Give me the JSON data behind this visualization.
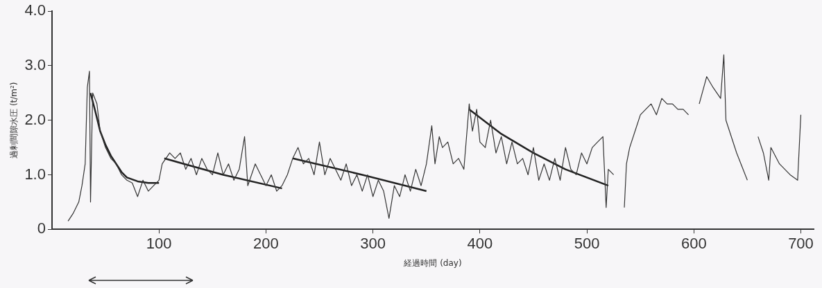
{
  "chart_data": {
    "type": "line",
    "xlabel": "経過時間 (day)",
    "ylabel": "過剰間隙水圧 (t/m²)",
    "xlim": [
      0,
      712
    ],
    "ylim": [
      0,
      4
    ],
    "xticks": [
      100,
      200,
      300,
      400,
      500,
      600,
      700
    ],
    "yticks": [
      0,
      {
        "value": 1,
        "label": "1.0"
      },
      {
        "value": 2,
        "label": "2.0"
      },
      {
        "value": 3,
        "label": "3.0"
      },
      {
        "value": 4,
        "label": "4.0"
      }
    ],
    "marker": "none",
    "line_style": "solid",
    "series": [
      {
        "color": "#333333",
        "x": [
          15,
          20,
          25,
          28,
          31,
          33,
          35,
          36,
          38,
          42,
          45,
          50,
          55,
          60,
          65,
          70,
          75,
          80,
          85,
          90,
          95,
          100,
          103,
          110,
          115,
          120,
          125,
          130,
          135,
          140,
          145,
          150,
          155,
          160,
          165,
          170,
          175,
          180,
          183,
          190,
          195,
          200,
          205,
          210,
          215,
          220,
          225,
          230,
          235,
          240,
          245,
          250,
          255,
          260,
          265,
          270,
          275,
          280,
          285,
          290,
          295,
          300,
          305,
          310,
          315,
          320,
          325,
          330,
          335,
          340,
          345,
          350,
          355,
          358,
          362,
          365,
          370,
          375,
          380,
          385,
          390,
          393,
          397,
          400,
          405,
          410,
          415,
          420,
          425,
          430,
          435,
          440,
          445,
          450,
          455,
          460,
          465,
          470,
          475,
          480,
          485,
          490,
          495,
          500,
          505,
          510,
          515,
          518,
          520,
          525,
          530,
          535,
          537,
          540,
          545,
          550,
          555,
          560,
          565,
          570,
          575,
          580,
          585,
          590,
          595,
          600,
          605,
          612,
          618,
          625,
          628,
          630,
          640,
          650,
          655,
          660,
          665,
          670,
          672,
          680,
          690,
          697,
          700
        ],
        "values": [
          0.15,
          0.3,
          0.5,
          0.8,
          1.2,
          2.6,
          2.9,
          0.5,
          2.5,
          2.3,
          1.8,
          1.5,
          1.3,
          1.2,
          1.0,
          0.9,
          0.85,
          0.6,
          0.9,
          0.7,
          0.8,
          0.9,
          1.2,
          1.4,
          1.3,
          1.4,
          1.1,
          1.3,
          1.0,
          1.3,
          1.1,
          1.0,
          1.4,
          1.0,
          1.2,
          0.9,
          1.1,
          1.7,
          0.8,
          1.2,
          1.0,
          0.8,
          1.0,
          0.7,
          0.8,
          1.0,
          1.3,
          1.5,
          1.2,
          1.3,
          1.0,
          1.6,
          1.0,
          1.3,
          1.1,
          0.9,
          1.2,
          0.8,
          1.0,
          0.7,
          1.0,
          0.6,
          0.9,
          0.7,
          0.2,
          0.8,
          0.6,
          1.0,
          0.7,
          1.1,
          0.8,
          1.2,
          1.9,
          1.2,
          1.7,
          1.5,
          1.6,
          1.2,
          1.3,
          1.1,
          2.3,
          1.8,
          2.2,
          1.6,
          1.5,
          2.0,
          1.4,
          1.7,
          1.2,
          1.6,
          1.2,
          1.3,
          1.0,
          1.5,
          0.9,
          1.2,
          0.9,
          1.3,
          0.9,
          1.5,
          1.1,
          1.0,
          1.4,
          1.2,
          1.5,
          1.6,
          1.7,
          0.4,
          1.1,
          1.0,
          null,
          0.4,
          1.2,
          1.5,
          1.8,
          2.1,
          2.2,
          2.3,
          2.1,
          2.4,
          2.3,
          2.3,
          2.2,
          2.2,
          2.1,
          null,
          2.3,
          2.8,
          2.6,
          2.4,
          3.2,
          2.0,
          1.4,
          0.9,
          null,
          1.7,
          1.4,
          0.9,
          1.5,
          1.2,
          1.0,
          0.9,
          2.1
        ]
      },
      {
        "color": "#222222",
        "x": [
          36,
          40,
          45,
          50,
          55,
          60,
          65,
          70,
          80,
          90,
          100
        ],
        "values": [
          2.5,
          2.2,
          1.8,
          1.55,
          1.35,
          1.2,
          1.05,
          0.95,
          0.88,
          0.85,
          0.85
        ]
      },
      {
        "color": "#222222",
        "x": [
          105,
          160,
          215
        ],
        "values": [
          1.3,
          1.0,
          0.75
        ]
      },
      {
        "color": "#222222",
        "x": [
          225,
          290,
          350
        ],
        "values": [
          1.3,
          1.0,
          0.7
        ]
      },
      {
        "color": "#222222",
        "x": [
          390,
          420,
          450,
          480,
          520
        ],
        "values": [
          2.2,
          1.75,
          1.4,
          1.1,
          0.8
        ]
      }
    ]
  }
}
